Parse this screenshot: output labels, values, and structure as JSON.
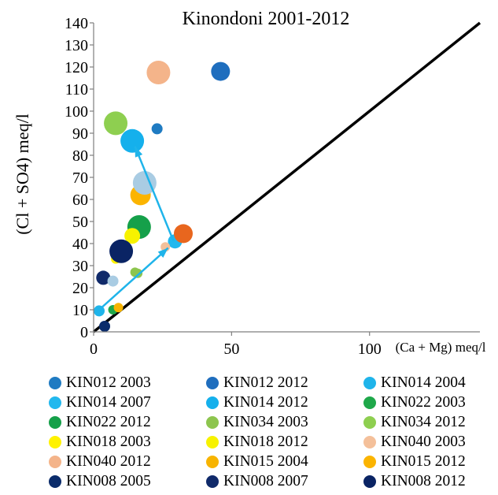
{
  "chart_data": {
    "type": "scatter",
    "title": "Kinondoni 2001-2012",
    "xlabel": "(Ca + Mg) meq/l",
    "ylabel": "(Cl + SO4) meq/l",
    "xlim": [
      0,
      140
    ],
    "ylim": [
      0,
      140
    ],
    "x_ticks": [
      "0",
      "50",
      "100"
    ],
    "y_ticks": [
      "0",
      "10",
      "20",
      "30",
      "40",
      "50",
      "60",
      "70",
      "80",
      "90",
      "100",
      "110",
      "120",
      "130",
      "140"
    ],
    "grid": false,
    "legend_position": "bottom",
    "reference_line": {
      "name": "",
      "x": [
        0,
        140
      ],
      "y": [
        0,
        140
      ],
      "color": "#000000"
    },
    "arrows": [
      {
        "from": [
          2,
          10
        ],
        "to": [
          27,
          38
        ],
        "color": "#1fb4ea"
      },
      {
        "from": [
          29,
          41
        ],
        "to": [
          15,
          84
        ],
        "color": "#1fb4ea"
      }
    ],
    "series": [
      {
        "name": "KIN012 2003",
        "color": "#1f7bc2",
        "points": [
          {
            "x": 23,
            "y": 92,
            "r": 7
          }
        ]
      },
      {
        "name": "KIN012 2012",
        "color": "#1f6ebe",
        "points": [
          {
            "x": 46,
            "y": 118,
            "r": 12
          }
        ]
      },
      {
        "name": "KIN014 2004",
        "color": "#1fb4ea",
        "points": [
          {
            "x": 2,
            "y": 9.5,
            "r": 7
          }
        ]
      },
      {
        "name": "KIN014 2007",
        "color": "#22b8ee",
        "points": [
          {
            "x": 29.5,
            "y": 41,
            "r": 9
          }
        ]
      },
      {
        "name": "KIN014 2012",
        "color": "#15b0ec",
        "points": [
          {
            "x": 14,
            "y": 86.5,
            "r": 15
          }
        ]
      },
      {
        "name": "KIN022 2003",
        "color": "#1fa84a",
        "points": [
          {
            "x": 7,
            "y": 10,
            "r": 6
          }
        ]
      },
      {
        "name": "KIN022 2012",
        "color": "#15a04a",
        "points": [
          {
            "x": 16.5,
            "y": 47.5,
            "r": 15
          }
        ]
      },
      {
        "name": "KIN034 2003",
        "color": "#8dc54e",
        "points": [
          {
            "x": 15,
            "y": 27,
            "r": 6
          }
        ]
      },
      {
        "name": "KIN034 2012",
        "color": "#8ecf50",
        "points": [
          {
            "x": 8,
            "y": 94.5,
            "r": 15
          }
        ]
      },
      {
        "name": "KIN018 2003",
        "color": "#fff200",
        "points": [
          {
            "x": 8,
            "y": 33,
            "r": 6
          }
        ]
      },
      {
        "name": "KIN018 2012",
        "color": "#f7f200",
        "points": [
          {
            "x": 14,
            "y": 43.5,
            "r": 10
          }
        ]
      },
      {
        "name": "KIN040 2003",
        "color": "#f4c09a",
        "points": [
          {
            "x": 26,
            "y": 38.5,
            "r": 6
          }
        ]
      },
      {
        "name": "KIN040 2012",
        "color": "#f4b48a",
        "points": [
          {
            "x": 23.5,
            "y": 117.5,
            "r": 15
          }
        ]
      },
      {
        "name": "KIN015 2004",
        "color": "#f7b400",
        "points": [
          {
            "x": 9,
            "y": 11,
            "r": 6
          }
        ]
      },
      {
        "name": "KIN015 2012",
        "color": "#fbb400",
        "points": [
          {
            "x": 17,
            "y": 62,
            "r": 13
          }
        ]
      },
      {
        "name": "KIN008 2005",
        "color": "#0b2c6b",
        "points": [
          {
            "x": 4,
            "y": 2.5,
            "r": 7
          }
        ]
      },
      {
        "name": "KIN008 2007",
        "color": "#102a6a",
        "points": [
          {
            "x": 3.5,
            "y": 24.5,
            "r": 9
          }
        ]
      },
      {
        "name": "KIN008 2012",
        "color": "#0a2464",
        "points": [
          {
            "x": 10,
            "y": 36.5,
            "r": 15
          }
        ]
      },
      {
        "name": "",
        "color": "#a9cce3",
        "points": [
          {
            "x": 18.5,
            "y": 67.5,
            "r": 15
          },
          {
            "x": 7,
            "y": 23,
            "r": 7
          }
        ]
      },
      {
        "name": "",
        "color": "#8dc54e",
        "points": [
          {
            "x": 16,
            "y": 26.5,
            "r": 6
          }
        ]
      },
      {
        "name": "",
        "color": "#e8661e",
        "points": [
          {
            "x": 32.5,
            "y": 44.5,
            "r": 12
          }
        ]
      }
    ]
  }
}
